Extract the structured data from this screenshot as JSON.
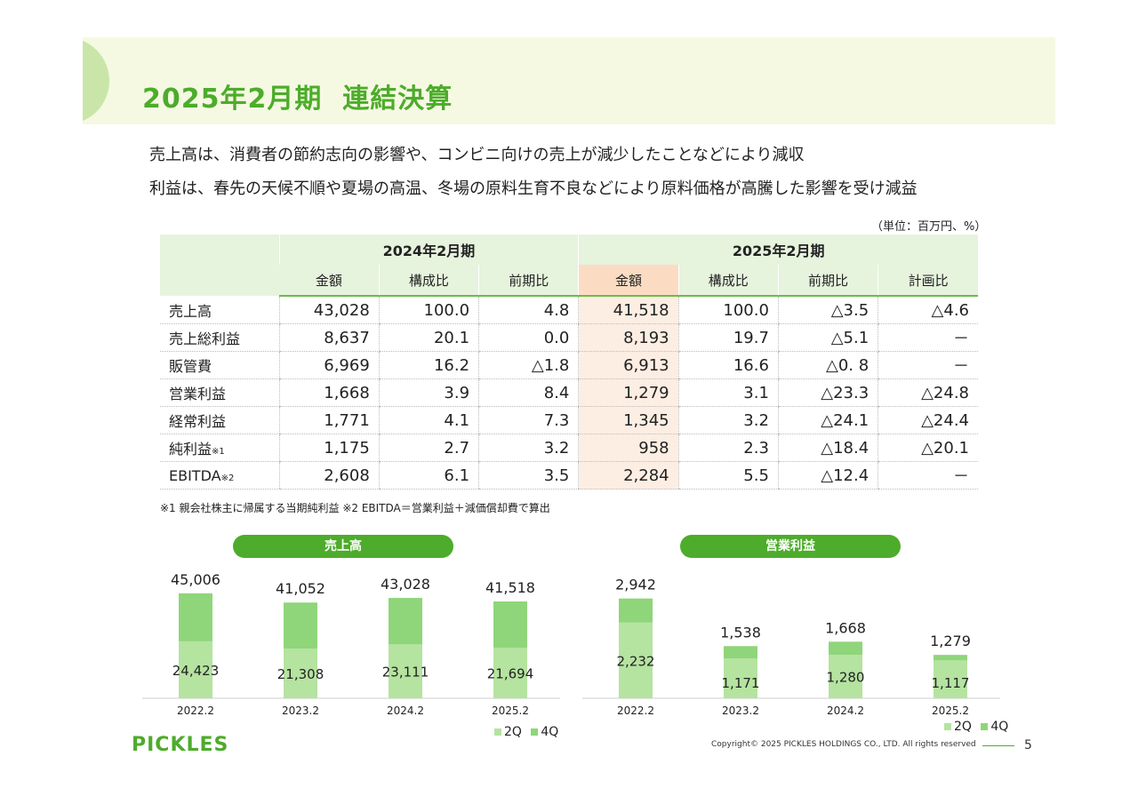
{
  "header": {
    "title": "2025年2月期  連結決算"
  },
  "summary": [
    "売上高は、消費者の節約志向の影響や、コンビニ向けの売上が減少したことなどにより減収",
    "利益は、春先の天候不順や夏場の高温、冬場の原料生育不良などにより原料価格が高騰した影響を受け減益"
  ],
  "unit_note": "（単位：百万円、%）",
  "table": {
    "groups": [
      "2024年2月期",
      "2025年2月期"
    ],
    "subheaders": [
      "金額",
      "構成比",
      "前期比",
      "金額",
      "構成比",
      "前期比",
      "計画比"
    ],
    "rows": [
      {
        "label": "売上高",
        "note": "",
        "cells": [
          "43,028",
          "100.0",
          "4.8",
          "41,518",
          "100.0",
          "△3.5",
          "△4.6"
        ]
      },
      {
        "label": "売上総利益",
        "note": "",
        "cells": [
          "8,637",
          "20.1",
          "0.0",
          "8,193",
          "19.7",
          "△5.1",
          "－"
        ]
      },
      {
        "label": "販管費",
        "note": "",
        "cells": [
          "6,969",
          "16.2",
          "△1.8",
          "6,913",
          "16.6",
          "△0. 8",
          "－"
        ]
      },
      {
        "label": "営業利益",
        "note": "",
        "cells": [
          "1,668",
          "3.9",
          "8.4",
          "1,279",
          "3.1",
          "△23.3",
          "△24.8"
        ]
      },
      {
        "label": "経常利益",
        "note": "",
        "cells": [
          "1,771",
          "4.1",
          "7.3",
          "1,345",
          "3.2",
          "△24.1",
          "△24.4"
        ]
      },
      {
        "label": "純利益",
        "note": "※1",
        "cells": [
          "1,175",
          "2.7",
          "3.2",
          "958",
          "2.3",
          "△18.4",
          "△20.1"
        ]
      },
      {
        "label": "EBITDA",
        "note": "※2",
        "cells": [
          "2,608",
          "6.1",
          "3.5",
          "2,284",
          "5.5",
          "△12.4",
          "－"
        ]
      }
    ]
  },
  "footnote": "※1 親会社株主に帰属する当期純利益  ※2  EBITDA＝営業利益＋減価償却費で算出",
  "colors": {
    "brand_green": "#4dac2b",
    "q2": "#b5e3a0",
    "q4": "#8fd57a",
    "highlight_header": "#fbdcc3",
    "highlight_cell": "#fdeee3"
  },
  "chart_data": [
    {
      "type": "bar",
      "title": "売上高",
      "categories": [
        "2022.2",
        "2023.2",
        "2024.2",
        "2025.2"
      ],
      "stacked": true,
      "series": [
        {
          "name": "2Q",
          "values": [
            24423,
            21308,
            23111,
            21694
          ],
          "labels": [
            "24,423",
            "21,308",
            "23,111",
            "21,694"
          ]
        },
        {
          "name": "4Q",
          "values": [
            20583,
            19744,
            19917,
            19824
          ]
        }
      ],
      "totals": [
        45006,
        41052,
        43028,
        41518
      ],
      "total_labels": [
        "45,006",
        "41,052",
        "43,028",
        "41,518"
      ],
      "legend": [
        "2Q",
        "4Q"
      ],
      "legend_position": "bottom-right"
    },
    {
      "type": "bar",
      "title": "営業利益",
      "categories": [
        "2022.2",
        "2023.2",
        "2024.2",
        "2025.2"
      ],
      "stacked": true,
      "series": [
        {
          "name": "2Q",
          "values": [
            2232,
            1171,
            1280,
            1117
          ],
          "labels": [
            "2,232",
            "1,171",
            "1,280",
            "1,117"
          ]
        },
        {
          "name": "4Q",
          "values": [
            710,
            367,
            388,
            162
          ]
        }
      ],
      "totals": [
        2942,
        1538,
        1668,
        1279
      ],
      "total_labels": [
        "2,942",
        "1,538",
        "1,668",
        "1,279"
      ],
      "legend": [
        "2Q",
        "4Q"
      ],
      "legend_position": "bottom-right"
    }
  ],
  "footer": {
    "logo": "PICKLES",
    "copyright": "Copyright© 2025 PICKLES HOLDINGS CO., LTD. All rights reserved",
    "page": "5"
  }
}
